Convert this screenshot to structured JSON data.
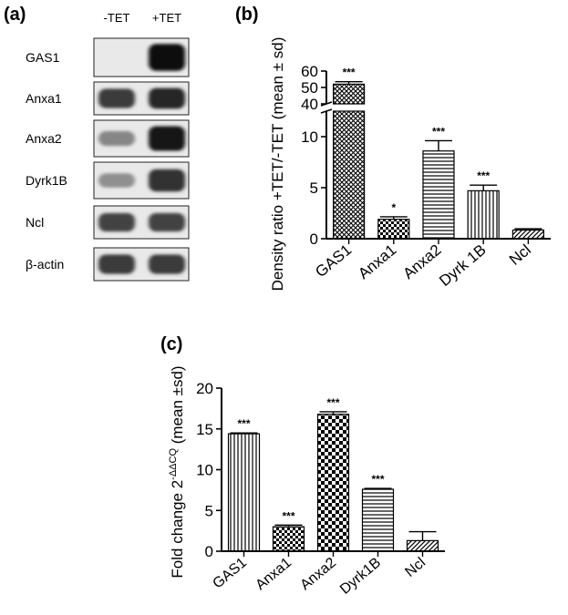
{
  "panel_labels": {
    "a": "(a)",
    "b": "(b)",
    "c": "(c)"
  },
  "blot": {
    "columns": [
      "-TET",
      "+TET"
    ],
    "rows": [
      {
        "label": "GAS1",
        "minus": 0.05,
        "plus": 1.0
      },
      {
        "label": "Anxa1",
        "minus": 0.75,
        "plus": 0.85
      },
      {
        "label": "Anxa2",
        "minus": 0.35,
        "plus": 0.95
      },
      {
        "label": "Dyrk1B",
        "minus": 0.3,
        "plus": 0.8
      },
      {
        "label": "Ncl",
        "minus": 0.7,
        "plus": 0.7
      },
      {
        "label": "β-actin",
        "minus": 0.75,
        "plus": 0.75
      }
    ]
  },
  "chart_data": [
    {
      "id": "b",
      "type": "bar",
      "categories": [
        "GAS1",
        "Anxa1",
        "Anxa2",
        "Dyrk 1B",
        "Ncl"
      ],
      "values": [
        52,
        1.9,
        8.6,
        4.7,
        0.85
      ],
      "errors": [
        1.5,
        0.25,
        1.0,
        0.55,
        0.12
      ],
      "significance": [
        "***",
        "*",
        "***",
        "***",
        ""
      ],
      "patterns": [
        "crosshatch",
        "checker",
        "horizontal",
        "vertical",
        "diagonal"
      ],
      "ylabel": "Density ratio +TET/-TET (mean ± sd)",
      "xlabel": "",
      "ylim": [
        0,
        60
      ],
      "axis_break": [
        12.5,
        40
      ],
      "yticks": [
        0,
        5,
        10,
        40,
        50,
        60
      ]
    },
    {
      "id": "c",
      "type": "bar",
      "categories": [
        "GAS1",
        "Anxa1",
        "Anxa2",
        "Dyrk1B",
        "Ncl"
      ],
      "values": [
        14.4,
        3.0,
        16.8,
        7.6,
        1.3
      ],
      "errors": [
        0.1,
        0.2,
        0.3,
        0.1,
        1.1
      ],
      "significance": [
        "***",
        "***",
        "***",
        "***",
        ""
      ],
      "patterns": [
        "vertical",
        "checker",
        "checker-bold",
        "horizontal",
        "diagonal"
      ],
      "ylabel": "Fold change 2-ΔΔCQ (mean ±sd)",
      "ylabel_parts": {
        "base": "Fold change 2",
        "superscript": "-ΔΔCQ",
        "suffix": " (mean ±sd)"
      },
      "xlabel": "",
      "ylim": [
        0,
        20
      ],
      "yticks": [
        0,
        5,
        10,
        15,
        20
      ]
    }
  ]
}
